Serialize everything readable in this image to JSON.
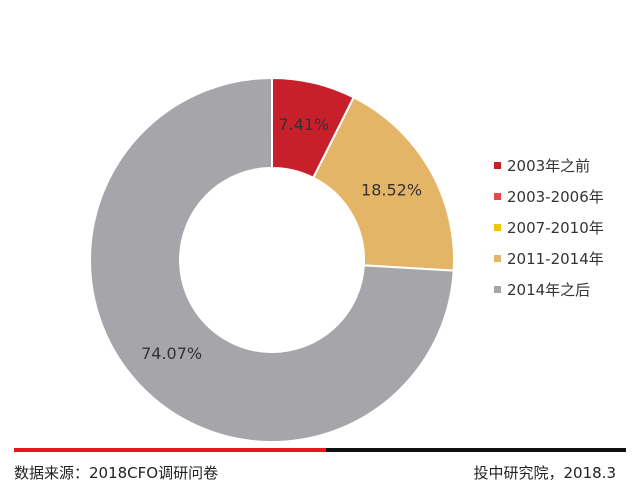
{
  "chart_data": {
    "type": "pie",
    "donut": true,
    "categories": [
      "2003年之前",
      "2003-2006年",
      "2007-2010年",
      "2011-2014年",
      "2014年之后"
    ],
    "values": [
      7.41,
      0,
      0,
      18.52,
      74.07
    ],
    "value_labels": [
      "7.41%",
      "",
      "",
      "18.52%",
      "74.07%"
    ],
    "colors": [
      "#c8202b",
      "#e8474f",
      "#f2c500",
      "#e5b567",
      "#a6a6aa"
    ],
    "legend": "right",
    "start": "12 o'clock, clockwise"
  },
  "footer": {
    "source": "数据来源：2018CFO调研问卷",
    "credit": "投中研究院，2018.3"
  }
}
